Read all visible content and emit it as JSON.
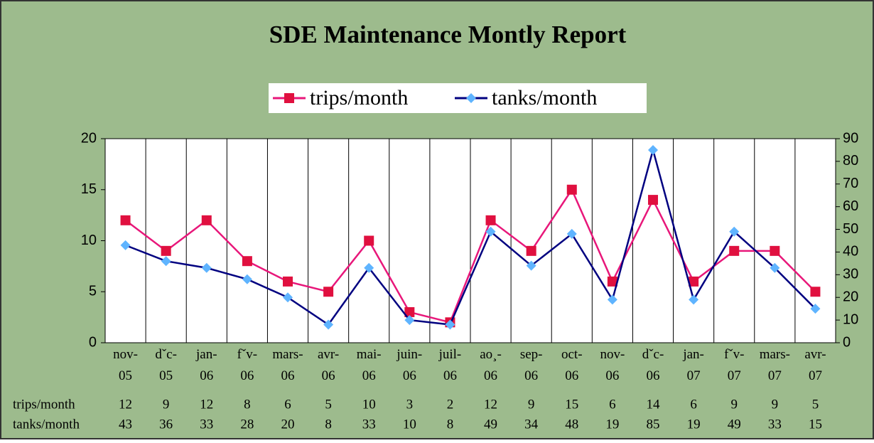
{
  "chart_data": {
    "type": "line",
    "title": "SDE Maintenance Montly Report",
    "categories": [
      "nov-05",
      "dˇc-05",
      "jan-06",
      "fˇv-06",
      "mars-06",
      "avr-06",
      "mai-06",
      "juin-06",
      "juil-06",
      "ao¸-06",
      "sep-06",
      "oct-06",
      "nov-06",
      "dˇc-06",
      "jan-07",
      "fˇv-07",
      "mars-07",
      "avr-07"
    ],
    "series": [
      {
        "name": "trips/month",
        "color": "#e8177a",
        "marker_color": "#e0103f",
        "values": [
          12,
          9,
          12,
          8,
          6,
          5,
          10,
          3,
          2,
          12,
          9,
          15,
          6,
          14,
          6,
          9,
          9,
          5
        ]
      },
      {
        "name": "tanks/month",
        "color": "#000080",
        "marker_color": "#5fb4ff",
        "axis": "y2",
        "values": [
          43,
          36,
          33,
          28,
          20,
          8,
          33,
          10,
          8,
          49,
          34,
          48,
          19,
          85,
          19,
          49,
          33,
          15
        ]
      }
    ],
    "ylim": [
      0,
      20
    ],
    "yticks": [
      0,
      5,
      10,
      15,
      20
    ],
    "y2lim": [
      0,
      90
    ],
    "y2ticks": [
      0,
      10,
      20,
      30,
      40,
      50,
      60,
      70,
      80,
      90
    ],
    "legend": "top",
    "data_table": true
  }
}
